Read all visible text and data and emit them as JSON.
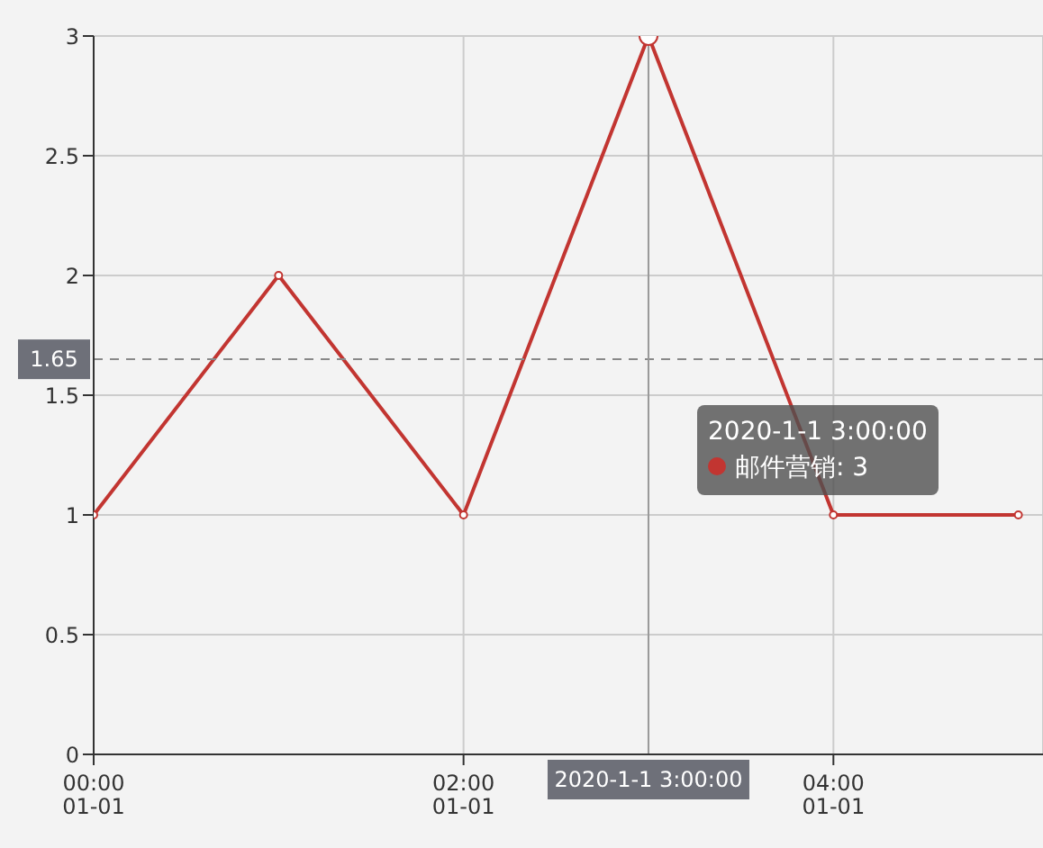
{
  "chart_data": {
    "type": "line",
    "x": [
      "2020-01-01T00:00",
      "2020-01-01T01:00",
      "2020-01-01T02:00",
      "2020-01-01T03:00",
      "2020-01-01T04:00",
      "2020-01-01T05:00"
    ],
    "xlim": [
      "2020-01-01T00:00",
      "2020-01-01T05:08"
    ],
    "xticks": [
      {
        "value": "2020-01-01T00:00",
        "label": "00:00\n01-01"
      },
      {
        "value": "2020-01-01T02:00",
        "label": "02:00\n01-01"
      },
      {
        "value": "2020-01-01T04:00",
        "label": "04:00\n01-01"
      }
    ],
    "ylim": [
      0,
      3
    ],
    "yticks": [
      0,
      0.5,
      1,
      1.5,
      2,
      2.5,
      3
    ],
    "grid": true,
    "marker": "circle",
    "line_style": "solid",
    "series": [
      {
        "color": "#c23531",
        "values": [
          1,
          2,
          1,
          3,
          1,
          1
        ]
      }
    ],
    "ref_lines": [
      {
        "axis": "y",
        "value": 1.65,
        "label": "1.65",
        "line_style": "dashed",
        "color": "#888888"
      },
      {
        "axis": "x",
        "value": "2020-01-01T03:00",
        "label": "2020-1-1 3:00:00",
        "color": "#999999"
      }
    ],
    "annotations": [
      "2020-1-1 3:00:00",
      "邮件营销: 3"
    ]
  }
}
